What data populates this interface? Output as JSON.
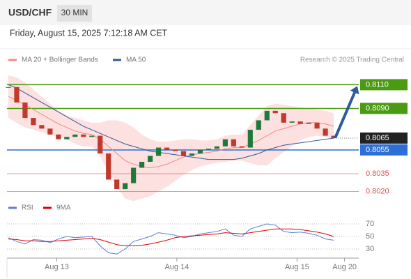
{
  "header": {
    "symbol": "USD/CHF",
    "timeframe": "30 MIN",
    "datetime": "Friday, August 15, 2025 7:12:18 AM CET"
  },
  "chart_data": [
    {
      "type": "candlestick",
      "source": "Research © 2025 Trading Central",
      "up_color": "#1f7a3a",
      "down_color": "#c0392b",
      "closes": [
        0.8108,
        0.8095,
        0.8082,
        0.8076,
        0.8073,
        0.8068,
        0.8064,
        0.8066,
        0.8068,
        0.8066,
        0.8067,
        0.8052,
        0.803,
        0.8022,
        0.8027,
        0.804,
        0.8045,
        0.805,
        0.8057,
        0.8055,
        0.8054,
        0.805,
        0.8052,
        0.8055,
        0.8056,
        0.8058,
        0.8064,
        0.8058,
        0.8057,
        0.8072,
        0.808,
        0.8088,
        0.8086,
        0.8078,
        0.8079,
        0.8077,
        0.8078,
        0.8073,
        0.8067,
        0.8065
      ],
      "series": [
        {
          "name": "MA 20 + Bollinger Bands",
          "color": "#f08a80",
          "values": [
            0.81,
            0.8097,
            0.8093,
            0.8089,
            0.8085,
            0.8081,
            0.8077,
            0.8074,
            0.8071,
            0.8069,
            0.8068,
            0.8064,
            0.8058,
            0.8052,
            0.8046,
            0.8043,
            0.8041,
            0.804,
            0.8041,
            0.8043,
            0.8046,
            0.8049,
            0.8051,
            0.8052,
            0.8053,
            0.8054,
            0.8056,
            0.8057,
            0.8057,
            0.806,
            0.8063,
            0.8067,
            0.8071,
            0.8073,
            0.8075,
            0.8077,
            0.8078,
            0.8078,
            0.8077,
            0.8075
          ]
        },
        {
          "name": "MA 50",
          "color": "#2d5a9a",
          "values": [
            0.811,
            0.8107,
            0.8103,
            0.8099,
            0.8095,
            0.8091,
            0.8087,
            0.8083,
            0.8079,
            0.8075,
            0.8072,
            0.8069,
            0.8066,
            0.8063,
            0.806,
            0.8058,
            0.8056,
            0.8054,
            0.8053,
            0.8052,
            0.8051,
            0.805,
            0.8049,
            0.8048,
            0.8047,
            0.8047,
            0.8047,
            0.8047,
            0.8048,
            0.805,
            0.8052,
            0.8055,
            0.8057,
            0.8059,
            0.806,
            0.8061,
            0.8062,
            0.8063,
            0.8064,
            0.8065
          ]
        }
      ],
      "band_color": "#fde0e0",
      "band_upper": [
        0.8118,
        0.8116,
        0.8112,
        0.8106,
        0.81,
        0.8094,
        0.8088,
        0.8084,
        0.8082,
        0.808,
        0.8078,
        0.8078,
        0.808,
        0.808,
        0.8078,
        0.8074,
        0.8068,
        0.8064,
        0.8062,
        0.8062,
        0.8063,
        0.8064,
        0.8064,
        0.8063,
        0.8063,
        0.8064,
        0.8067,
        0.8068,
        0.8068,
        0.8076,
        0.8084,
        0.8092,
        0.8094,
        0.8093,
        0.8092,
        0.8091,
        0.809,
        0.8089,
        0.8088,
        0.8086
      ],
      "band_lower": [
        0.8082,
        0.8078,
        0.8074,
        0.8072,
        0.807,
        0.8068,
        0.8066,
        0.8064,
        0.806,
        0.8058,
        0.8058,
        0.805,
        0.8036,
        0.8024,
        0.8014,
        0.8012,
        0.8014,
        0.8016,
        0.802,
        0.8024,
        0.8029,
        0.8034,
        0.8038,
        0.8041,
        0.8043,
        0.8044,
        0.8045,
        0.8046,
        0.8046,
        0.8044,
        0.8042,
        0.8042,
        0.8048,
        0.8053,
        0.8058,
        0.8063,
        0.8066,
        0.8067,
        0.8066,
        0.8064
      ],
      "levels": [
        {
          "value": 0.811,
          "label": "0.8110",
          "color": "#4a9a12",
          "badge": true
        },
        {
          "value": 0.809,
          "label": "0.8090",
          "color": "#4a9a12",
          "badge": true
        },
        {
          "value": 0.8055,
          "label": "0.8055",
          "color": "#2d6fd6",
          "badge": true
        },
        {
          "value": 0.8035,
          "label": "0.8035",
          "color": "#e05050",
          "badge": false
        },
        {
          "value": 0.802,
          "label": "0.8020",
          "color": "#e05050",
          "badge": false
        }
      ],
      "current": {
        "value": 0.8065,
        "label": "0.8065",
        "color": "#222222"
      },
      "arrow_color": "#2d5a9a",
      "ylim": [
        0.8015,
        0.81179
      ],
      "xlim": [
        0,
        42
      ]
    },
    {
      "type": "line",
      "series": [
        {
          "name": "RSI",
          "color": "#5b7fd6",
          "values": [
            48,
            42,
            38,
            45,
            44,
            40,
            46,
            50,
            48,
            49,
            50,
            35,
            24,
            22,
            30,
            42,
            46,
            50,
            56,
            54,
            52,
            48,
            50,
            54,
            56,
            58,
            62,
            52,
            50,
            62,
            66,
            70,
            68,
            58,
            56,
            57,
            55,
            52,
            46,
            44
          ]
        },
        {
          "name": "9MA",
          "color": "#e00000",
          "values": [
            46,
            45,
            43,
            43,
            42,
            42,
            43,
            44,
            45,
            46,
            47,
            45,
            41,
            37,
            35,
            35,
            36,
            38,
            41,
            44,
            48,
            50,
            51,
            52,
            53,
            54,
            56,
            55,
            54,
            56,
            58,
            60,
            62,
            62,
            62,
            61,
            59,
            57,
            54,
            50
          ]
        }
      ],
      "ylim": [
        20,
        80
      ],
      "yticks": [
        30,
        50,
        70
      ],
      "xlim": [
        0,
        42
      ],
      "xticks": [
        {
          "value": 5.8,
          "label": "Aug 13"
        },
        {
          "value": 20.2,
          "label": "Aug 14"
        },
        {
          "value": 34.6,
          "label": "Aug 15"
        },
        {
          "value": 40.3,
          "label": "Aug 20"
        }
      ]
    }
  ]
}
